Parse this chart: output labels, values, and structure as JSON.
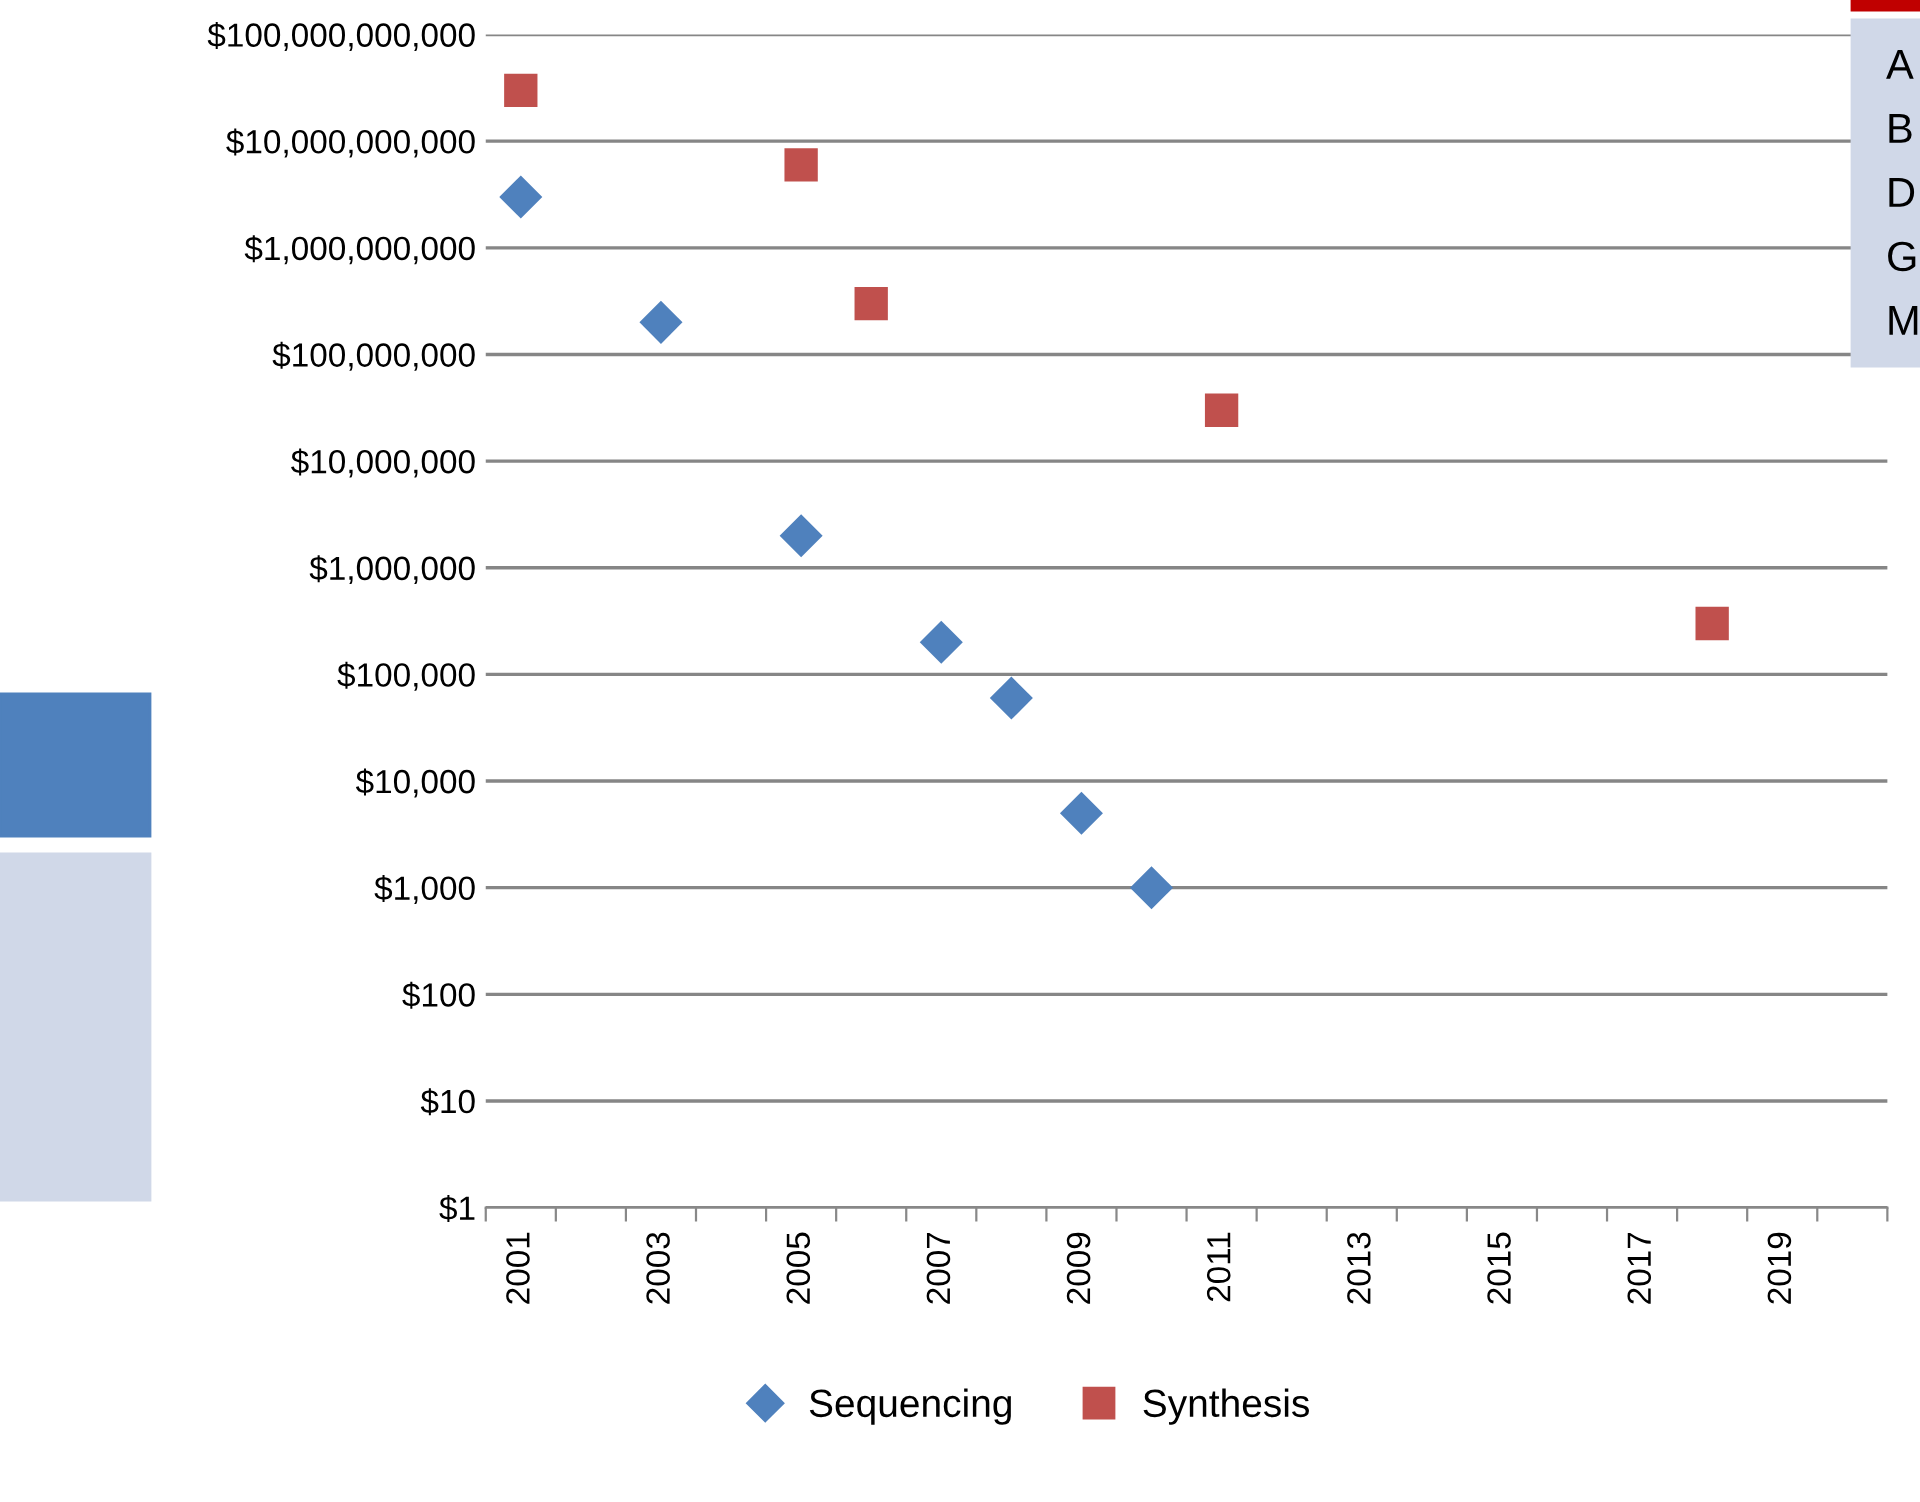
{
  "chart_data": {
    "type": "scatter",
    "legend": "bottom",
    "grid": "y",
    "log": "y",
    "xlim": [
      2000.5,
      2020.5
    ],
    "xticks": [
      {
        "value": 2000.5,
        "label": null
      },
      {
        "value": 2001,
        "label": "2001"
      },
      {
        "value": 2001.5,
        "label": null
      },
      {
        "value": 2002.5,
        "label": null
      },
      {
        "value": 2003,
        "label": "2003"
      },
      {
        "value": 2003.5,
        "label": null
      },
      {
        "value": 2004.5,
        "label": null
      },
      {
        "value": 2005,
        "label": "2005"
      },
      {
        "value": 2005.5,
        "label": null
      },
      {
        "value": 2006.5,
        "label": null
      },
      {
        "value": 2007,
        "label": "2007"
      },
      {
        "value": 2007.5,
        "label": null
      },
      {
        "value": 2008.5,
        "label": null
      },
      {
        "value": 2009,
        "label": "2009"
      },
      {
        "value": 2009.5,
        "label": null
      },
      {
        "value": 2010.5,
        "label": null
      },
      {
        "value": 2011,
        "label": "2011"
      },
      {
        "value": 2011.5,
        "label": null
      },
      {
        "value": 2012.5,
        "label": null
      },
      {
        "value": 2013,
        "label": "2013"
      },
      {
        "value": 2013.5,
        "label": null
      },
      {
        "value": 2014.5,
        "label": null
      },
      {
        "value": 2015,
        "label": "2015"
      },
      {
        "value": 2015.5,
        "label": null
      },
      {
        "value": 2016.5,
        "label": null
      },
      {
        "value": 2017,
        "label": "2017"
      },
      {
        "value": 2017.5,
        "label": null
      },
      {
        "value": 2018.5,
        "label": null
      },
      {
        "value": 2019,
        "label": "2019"
      },
      {
        "value": 2019.5,
        "label": null
      },
      {
        "value": 2020.5,
        "label": null
      }
    ],
    "ylim": [
      1,
      100000000000
    ],
    "yticks": [
      {
        "value": 1,
        "label": "$1"
      },
      {
        "value": 10,
        "label": "$10"
      },
      {
        "value": 100,
        "label": "$100"
      },
      {
        "value": 1000,
        "label": "$1,000"
      },
      {
        "value": 10000,
        "label": "$10,000"
      },
      {
        "value": 100000,
        "label": "$100,000"
      },
      {
        "value": 1000000,
        "label": "$1,000,000"
      },
      {
        "value": 10000000,
        "label": "$10,000,000"
      },
      {
        "value": 100000000,
        "label": "$100,000,000"
      },
      {
        "value": 1000000000,
        "label": "$1,000,000,000"
      },
      {
        "value": 10000000000,
        "label": "$10,000,000,000"
      },
      {
        "value": 100000000000,
        "label": "$100,000,000,000"
      }
    ],
    "series": [
      {
        "name": "Sequencing",
        "color": "#4f81bd",
        "marker": "diamond",
        "x": [
          2001,
          2003,
          2005,
          2007,
          2008,
          2009,
          2010
        ],
        "values": [
          3000000000,
          200000000,
          2000000,
          200000,
          60000,
          5000,
          1000
        ]
      },
      {
        "name": "Synthesis",
        "color": "#c0504d",
        "marker": "square",
        "x": [
          2001,
          2005,
          2006,
          2011,
          2018
        ],
        "values": [
          30000000000,
          6000000000,
          300000000,
          30000000,
          300000
        ]
      }
    ],
    "annotations": [
      "A",
      "B",
      "D",
      "G",
      "M"
    ]
  }
}
